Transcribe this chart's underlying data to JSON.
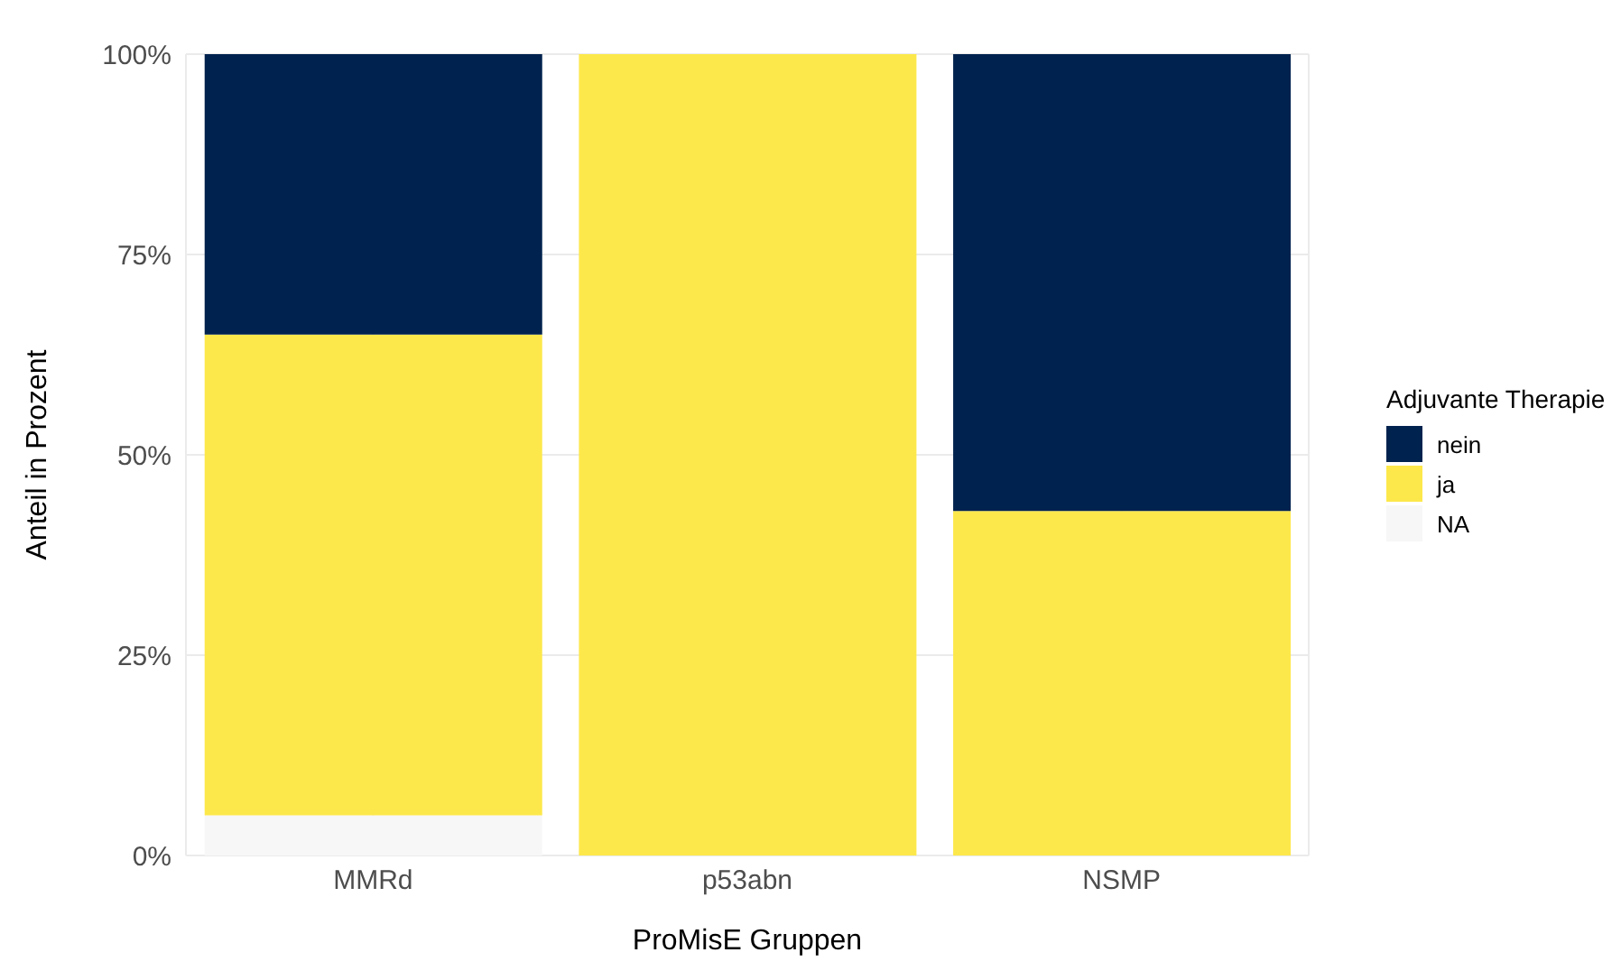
{
  "chart_data": {
    "type": "bar",
    "stacked": true,
    "xlabel": "ProMisE Gruppen",
    "ylabel": "Anteil in Prozent",
    "legend_title": "Adjuvante Therapie",
    "legend": "right",
    "grid": true,
    "categories": [
      "MMRd",
      "p53abn",
      "NSMP"
    ],
    "series": [
      {
        "name": "NA",
        "color": "#f7f7f7",
        "values": [
          5,
          0,
          0
        ]
      },
      {
        "name": "ja",
        "color": "#fde84b",
        "values": [
          60,
          100,
          43
        ]
      },
      {
        "name": "nein",
        "color": "#00224e",
        "values": [
          35,
          0,
          57
        ]
      }
    ],
    "ylim": [
      0,
      100
    ],
    "yticks": [
      {
        "value": 0,
        "label": "0%"
      },
      {
        "value": 25,
        "label": "25%"
      },
      {
        "value": 50,
        "label": "50%"
      },
      {
        "value": 75,
        "label": "75%"
      },
      {
        "value": 100,
        "label": "100%"
      }
    ]
  }
}
